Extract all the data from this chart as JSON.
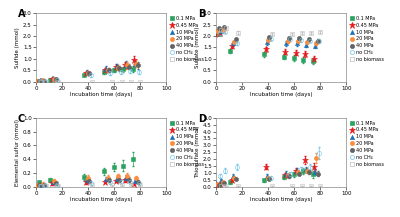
{
  "series_labels": [
    "0.1 MPa",
    "0.45 MPa",
    "10 MPa",
    "20 MPa",
    "40 MPa",
    "no CH₄",
    "no biomass"
  ],
  "colors": [
    "#2ca25f",
    "#e31a1c",
    "#2171b5",
    "#fd8d3c",
    "#636363",
    "#74c6e8",
    "#bdbdbd"
  ],
  "markers": [
    "s",
    "*",
    "^",
    "o",
    "o",
    "o",
    "s"
  ],
  "marker_filled": [
    true,
    true,
    true,
    true,
    true,
    false,
    false
  ],
  "marker_sizes": [
    3.0,
    4.5,
    3.0,
    3.0,
    3.0,
    3.0,
    3.0
  ],
  "timepoints": [
    1,
    5,
    14,
    40,
    55,
    63,
    70,
    77
  ],
  "offsets": [
    -3.0,
    -2.0,
    -1.0,
    0.0,
    1.0,
    2.0,
    3.0
  ],
  "A_ylabel": "Sulfide (mmol)",
  "A_ylim": [
    0,
    3
  ],
  "A_yticks": [
    0,
    0.5,
    1.0,
    1.5,
    2.0,
    2.5,
    3.0
  ],
  "A_data": {
    "0.1": {
      "y": [
        0.02,
        0.05,
        0.1,
        0.3,
        0.42,
        0.52,
        0.55,
        0.55
      ],
      "e": [
        0.01,
        0.02,
        0.04,
        0.06,
        0.08,
        0.1,
        0.12,
        0.14
      ]
    },
    "0.45": {
      "y": [
        0.02,
        0.05,
        0.13,
        0.38,
        0.52,
        0.65,
        0.72,
        0.95
      ],
      "e": [
        0.01,
        0.02,
        0.04,
        0.07,
        0.1,
        0.12,
        0.15,
        0.18
      ]
    },
    "10": {
      "y": [
        0.05,
        0.08,
        0.18,
        0.45,
        0.58,
        0.68,
        0.75,
        0.78
      ],
      "e": [
        0.02,
        0.03,
        0.05,
        0.08,
        0.1,
        0.12,
        0.15,
        0.15
      ]
    },
    "20": {
      "y": [
        0.03,
        0.07,
        0.13,
        0.4,
        0.52,
        0.62,
        0.72,
        0.8
      ],
      "e": [
        0.01,
        0.02,
        0.04,
        0.07,
        0.09,
        0.11,
        0.14,
        0.16
      ]
    },
    "40": {
      "y": [
        0.03,
        0.06,
        0.12,
        0.38,
        0.5,
        0.6,
        0.67,
        0.72
      ],
      "e": [
        0.01,
        0.02,
        0.04,
        0.07,
        0.09,
        0.11,
        0.12,
        0.14
      ]
    },
    "noCH4": {
      "y": [
        0.03,
        0.05,
        0.1,
        0.28,
        0.38,
        0.44,
        0.48,
        0.44
      ],
      "e": [
        0.01,
        0.02,
        0.03,
        0.05,
        0.07,
        0.09,
        0.1,
        0.1
      ]
    },
    "noB": {
      "y": [
        0.01,
        0.01,
        0.01,
        0.01,
        0.01,
        0.01,
        0.01,
        0.01
      ],
      "e": [
        0.003,
        0.003,
        0.003,
        0.003,
        0.003,
        0.003,
        0.003,
        0.003
      ]
    }
  },
  "B_ylabel": "Sulfate (mmol)",
  "B_ylim": [
    0,
    3
  ],
  "B_yticks": [
    0,
    0.5,
    1.0,
    1.5,
    2.0,
    2.5,
    3.0
  ],
  "B_data": {
    "0.1": {
      "y": [
        2.05,
        2.1,
        1.35,
        1.2,
        1.1,
        1.05,
        0.95,
        0.9
      ],
      "e": [
        0.05,
        0.06,
        0.1,
        0.12,
        0.12,
        0.12,
        0.14,
        0.14
      ]
    },
    "0.45": {
      "y": [
        2.1,
        2.12,
        1.58,
        1.42,
        1.32,
        1.28,
        1.22,
        1.0
      ],
      "e": [
        0.05,
        0.06,
        0.1,
        0.12,
        0.12,
        0.12,
        0.12,
        0.14
      ]
    },
    "10": {
      "y": [
        2.2,
        2.22,
        1.68,
        1.72,
        1.68,
        1.68,
        1.62,
        1.58
      ],
      "e": [
        0.05,
        0.06,
        0.1,
        0.1,
        0.1,
        0.1,
        0.1,
        0.1
      ]
    },
    "20": {
      "y": [
        2.22,
        2.25,
        1.72,
        1.82,
        1.78,
        1.78,
        1.72,
        1.68
      ],
      "e": [
        0.05,
        0.06,
        0.08,
        0.08,
        0.08,
        0.08,
        0.08,
        0.08
      ]
    },
    "40": {
      "y": [
        2.35,
        2.4,
        1.85,
        1.95,
        1.9,
        1.9,
        1.85,
        1.8
      ],
      "e": [
        0.04,
        0.05,
        0.06,
        0.06,
        0.06,
        0.06,
        0.06,
        0.06
      ]
    },
    "noCH4": {
      "y": [
        2.12,
        2.18,
        1.68,
        1.88,
        1.85,
        1.82,
        1.8,
        1.78
      ],
      "e": [
        0.05,
        0.06,
        0.07,
        0.07,
        0.07,
        0.07,
        0.07,
        0.07
      ]
    },
    "noB": {
      "y": [
        2.25,
        2.35,
        2.15,
        2.08,
        2.08,
        2.12,
        2.12,
        2.18
      ],
      "e": [
        0.04,
        0.05,
        0.05,
        0.05,
        0.05,
        0.05,
        0.05,
        0.05
      ]
    }
  },
  "C_ylabel": "Elemental sulfur (mmol)",
  "C_ylim": [
    0,
    1
  ],
  "C_yticks": [
    0,
    0.2,
    0.4,
    0.6,
    0.8,
    1.0
  ],
  "C_data": {
    "0.1": {
      "y": [
        0.03,
        0.06,
        0.1,
        0.14,
        0.22,
        0.28,
        0.3,
        0.4
      ],
      "e": [
        0.01,
        0.02,
        0.03,
        0.04,
        0.05,
        0.06,
        0.08,
        0.1
      ]
    },
    "0.45": {
      "y": [
        0.02,
        0.03,
        0.05,
        0.06,
        0.07,
        0.08,
        0.1,
        0.04
      ],
      "e": [
        0.01,
        0.01,
        0.02,
        0.02,
        0.02,
        0.02,
        0.03,
        0.01
      ]
    },
    "10": {
      "y": [
        0.02,
        0.03,
        0.06,
        0.1,
        0.11,
        0.11,
        0.13,
        0.08
      ],
      "e": [
        0.01,
        0.01,
        0.02,
        0.03,
        0.03,
        0.03,
        0.04,
        0.02
      ]
    },
    "20": {
      "y": [
        0.02,
        0.04,
        0.08,
        0.13,
        0.13,
        0.15,
        0.15,
        0.12
      ],
      "e": [
        0.01,
        0.02,
        0.03,
        0.04,
        0.04,
        0.04,
        0.05,
        0.04
      ]
    },
    "40": {
      "y": [
        0.02,
        0.03,
        0.05,
        0.08,
        0.09,
        0.1,
        0.1,
        0.07
      ],
      "e": [
        0.01,
        0.01,
        0.02,
        0.03,
        0.03,
        0.03,
        0.04,
        0.02
      ]
    },
    "noCH4": {
      "y": [
        0.01,
        0.02,
        0.03,
        0.05,
        0.06,
        0.07,
        0.07,
        0.05
      ],
      "e": [
        0.005,
        0.01,
        0.01,
        0.02,
        0.02,
        0.02,
        0.02,
        0.02
      ]
    },
    "noB": {
      "y": [
        0.01,
        0.01,
        0.01,
        0.02,
        0.02,
        0.02,
        0.02,
        0.02
      ],
      "e": [
        0.003,
        0.003,
        0.003,
        0.005,
        0.005,
        0.005,
        0.005,
        0.005
      ]
    }
  },
  "D_ylabel": "Thiosulfate (mmol)",
  "D_ylim": [
    0,
    5
  ],
  "D_yticks": [
    0,
    0.5,
    1.0,
    1.5,
    2.0,
    2.5,
    3.0,
    3.5,
    4.0,
    4.5,
    5.0
  ],
  "D_data": {
    "0.1": {
      "y": [
        0.08,
        0.15,
        0.3,
        0.45,
        0.7,
        0.9,
        1.1,
        0.9
      ],
      "e": [
        0.04,
        0.06,
        0.08,
        0.1,
        0.14,
        0.18,
        0.22,
        0.25
      ]
    },
    "0.45": {
      "y": [
        0.1,
        0.2,
        0.45,
        1.45,
        0.85,
        1.15,
        1.95,
        1.4
      ],
      "e": [
        0.04,
        0.07,
        0.1,
        0.18,
        0.14,
        0.18,
        0.28,
        0.35
      ]
    },
    "10": {
      "y": [
        0.28,
        0.45,
        0.75,
        0.75,
        0.95,
        1.15,
        1.25,
        1.05
      ],
      "e": [
        0.07,
        0.09,
        0.13,
        0.13,
        0.16,
        0.18,
        0.2,
        0.22
      ]
    },
    "20": {
      "y": [
        0.18,
        0.35,
        0.65,
        0.65,
        0.85,
        1.05,
        1.15,
        2.1
      ],
      "e": [
        0.05,
        0.07,
        0.1,
        0.1,
        0.13,
        0.16,
        0.18,
        0.35
      ]
    },
    "40": {
      "y": [
        0.12,
        0.25,
        0.55,
        0.55,
        0.75,
        0.95,
        1.05,
        0.95
      ],
      "e": [
        0.04,
        0.06,
        0.09,
        0.09,
        0.11,
        0.14,
        0.16,
        0.18
      ]
    },
    "noCH4": {
      "y": [
        0.75,
        1.15,
        1.45,
        0.65,
        0.95,
        1.25,
        1.45,
        2.45
      ],
      "e": [
        0.14,
        0.18,
        0.22,
        0.1,
        0.14,
        0.18,
        0.22,
        0.45
      ]
    },
    "noB": {
      "y": [
        0.04,
        0.04,
        0.04,
        0.04,
        0.04,
        0.04,
        0.04,
        0.04
      ],
      "e": [
        0.01,
        0.01,
        0.01,
        0.01,
        0.01,
        0.01,
        0.01,
        0.01
      ]
    }
  },
  "xlabel": "Incubation time (days)",
  "xlim": [
    0,
    100
  ],
  "xticks": [
    0,
    20,
    40,
    60,
    80,
    100
  ]
}
